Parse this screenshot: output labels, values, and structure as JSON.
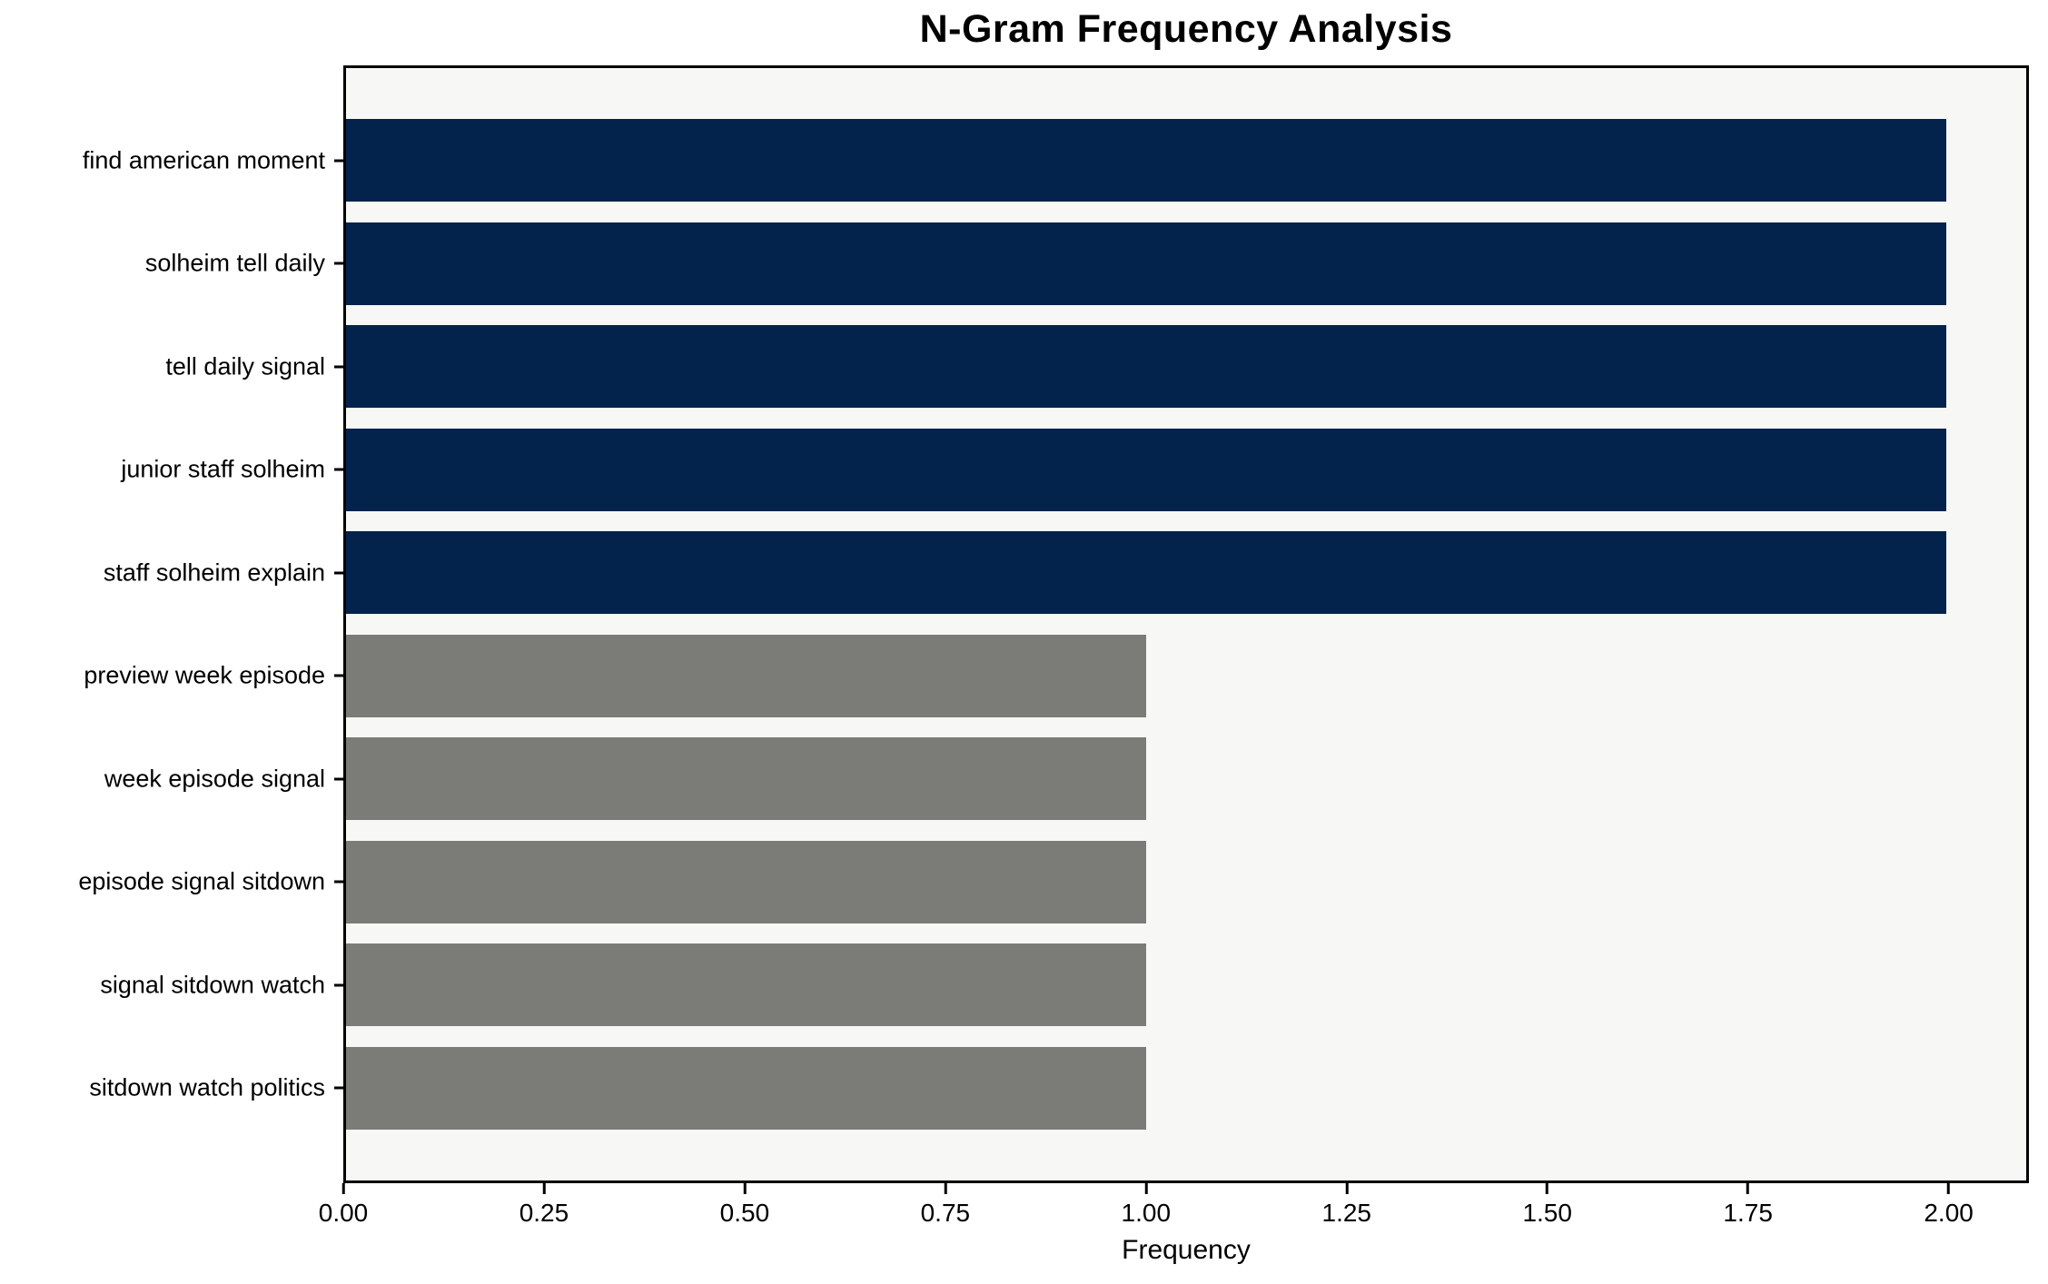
{
  "title": "N-Gram Frequency Analysis",
  "colors": {
    "navy": "#03224c",
    "gray": "#7b7b78",
    "plot_background": "#f7f7f6",
    "figure_background": "#ffffff",
    "spine": "#000000",
    "text": "#000000"
  },
  "chart_data": {
    "type": "bar",
    "orientation": "horizontal",
    "title": "N-Gram Frequency Analysis",
    "xlabel": "Frequency",
    "ylabel": "",
    "categories": [
      "find american moment",
      "solheim tell daily",
      "tell daily signal",
      "junior staff solheim",
      "staff solheim explain",
      "preview week episode",
      "week episode signal",
      "episode signal sitdown",
      "signal sitdown watch",
      "sitdown watch politics"
    ],
    "values": [
      2,
      2,
      2,
      2,
      2,
      1,
      1,
      1,
      1,
      1
    ],
    "bar_colors": [
      "navy",
      "navy",
      "navy",
      "navy",
      "navy",
      "gray",
      "gray",
      "gray",
      "gray",
      "gray"
    ],
    "xlim": [
      0,
      2.1
    ],
    "xticks": [
      0,
      0.25,
      0.5,
      0.75,
      1.0,
      1.25,
      1.5,
      1.75,
      2.0
    ],
    "xtick_labels": [
      "0.00",
      "0.25",
      "0.50",
      "0.75",
      "1.00",
      "1.25",
      "1.50",
      "1.75",
      "2.00"
    ],
    "grid": false,
    "legend": false
  }
}
